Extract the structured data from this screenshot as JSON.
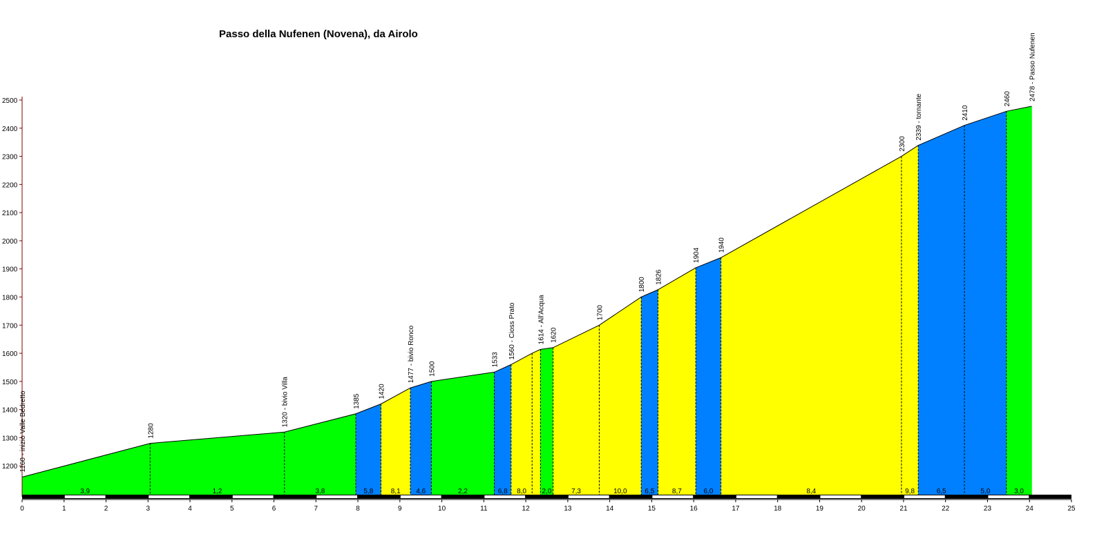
{
  "chart_data": {
    "type": "area",
    "title": "Passo della Nufenen (Novena), da Airolo",
    "xlabel": "",
    "ylabel": "",
    "xlim": [
      0,
      25
    ],
    "ylim": [
      1100,
      2500
    ],
    "x_ticks": [
      0,
      1,
      2,
      3,
      4,
      5,
      6,
      7,
      8,
      9,
      10,
      11,
      12,
      13,
      14,
      15,
      16,
      17,
      18,
      19,
      20,
      21,
      22,
      23,
      24,
      25
    ],
    "y_ticks": [
      1200,
      1300,
      1400,
      1500,
      1600,
      1700,
      1800,
      1900,
      2000,
      2100,
      2200,
      2300,
      2400,
      2500
    ],
    "grade_colors": {
      "green": "#00ff00",
      "yellow": "#ffff00",
      "blue": "#0080ff"
    },
    "points": [
      {
        "x": 0.0,
        "y": 1160,
        "label": "1160 - inizio Valle Bedretto"
      },
      {
        "x": 3.05,
        "y": 1280,
        "label": "1280"
      },
      {
        "x": 6.25,
        "y": 1320,
        "label": "1320 - bivio Villa"
      },
      {
        "x": 7.95,
        "y": 1385,
        "label": "1385"
      },
      {
        "x": 8.55,
        "y": 1420,
        "label": "1420"
      },
      {
        "x": 9.25,
        "y": 1477,
        "label": "1477 - bivio Ronco"
      },
      {
        "x": 9.75,
        "y": 1500,
        "label": "1500"
      },
      {
        "x": 11.25,
        "y": 1533,
        "label": "1533"
      },
      {
        "x": 11.65,
        "y": 1560,
        "label": "1560 - Cioss Prato"
      },
      {
        "x": 12.15,
        "y": 1600,
        "label": ""
      },
      {
        "x": 12.35,
        "y": 1614,
        "label": "1614 - All'Acqua"
      },
      {
        "x": 12.65,
        "y": 1620,
        "label": "1620"
      },
      {
        "x": 13.75,
        "y": 1700,
        "label": "1700"
      },
      {
        "x": 14.75,
        "y": 1800,
        "label": "1800"
      },
      {
        "x": 15.15,
        "y": 1826,
        "label": "1826"
      },
      {
        "x": 16.05,
        "y": 1904,
        "label": "1904"
      },
      {
        "x": 16.65,
        "y": 1940,
        "label": "1940"
      },
      {
        "x": 20.95,
        "y": 2300,
        "label": "2300"
      },
      {
        "x": 21.35,
        "y": 2339,
        "label": "2339 - tornante"
      },
      {
        "x": 22.45,
        "y": 2410,
        "label": "2410"
      },
      {
        "x": 23.45,
        "y": 2460,
        "label": "2460"
      },
      {
        "x": 24.05,
        "y": 2478,
        "label": "2478 - Passo Nufenen"
      }
    ],
    "segments": [
      {
        "from": 0.0,
        "to": 3.05,
        "grade": "3,9",
        "color": "green",
        "grade_x": 1.5
      },
      {
        "from": 3.05,
        "to": 6.25,
        "grade": "1,2",
        "color": "green",
        "grade_x": 4.65
      },
      {
        "from": 6.25,
        "to": 7.95,
        "grade": "3,8",
        "color": "green",
        "grade_x": 7.1
      },
      {
        "from": 7.95,
        "to": 8.55,
        "grade": "5,8",
        "color": "blue",
        "grade_x": 8.25
      },
      {
        "from": 8.55,
        "to": 9.25,
        "grade": "8,1",
        "color": "yellow",
        "grade_x": 8.9
      },
      {
        "from": 9.25,
        "to": 9.75,
        "grade": "4,6",
        "color": "blue",
        "grade_x": 9.5
      },
      {
        "from": 9.75,
        "to": 11.25,
        "grade": "2,2",
        "color": "green",
        "grade_x": 10.5
      },
      {
        "from": 11.25,
        "to": 11.65,
        "grade": "6,8",
        "color": "blue",
        "grade_x": 11.45
      },
      {
        "from": 11.65,
        "to": 12.15,
        "grade": "8,0",
        "color": "yellow",
        "grade_x": 11.9
      },
      {
        "from": 12.15,
        "to": 12.35,
        "grade": "",
        "color": "yellow",
        "grade_x": 12.25
      },
      {
        "from": 12.35,
        "to": 12.65,
        "grade": "2,0",
        "color": "green",
        "grade_x": 12.5
      },
      {
        "from": 12.65,
        "to": 13.75,
        "grade": "7,3",
        "color": "yellow",
        "grade_x": 13.2
      },
      {
        "from": 13.75,
        "to": 14.75,
        "grade": "10,0",
        "color": "yellow",
        "grade_x": 14.25
      },
      {
        "from": 14.75,
        "to": 15.15,
        "grade": "6,5",
        "color": "blue",
        "grade_x": 14.95
      },
      {
        "from": 15.15,
        "to": 16.05,
        "grade": "8,7",
        "color": "yellow",
        "grade_x": 15.6
      },
      {
        "from": 16.05,
        "to": 16.65,
        "grade": "6,0",
        "color": "blue",
        "grade_x": 16.35
      },
      {
        "from": 16.65,
        "to": 20.95,
        "grade": "8,4",
        "color": "yellow",
        "grade_x": 18.8
      },
      {
        "from": 20.95,
        "to": 21.35,
        "grade": "9,8",
        "color": "yellow",
        "grade_x": 21.15
      },
      {
        "from": 21.35,
        "to": 22.45,
        "grade": "6,5",
        "color": "blue",
        "grade_x": 21.9
      },
      {
        "from": 22.45,
        "to": 23.45,
        "grade": "5,0",
        "color": "blue",
        "grade_x": 22.95
      },
      {
        "from": 23.45,
        "to": 24.05,
        "grade": "3,0",
        "color": "green",
        "grade_x": 23.75
      }
    ]
  }
}
